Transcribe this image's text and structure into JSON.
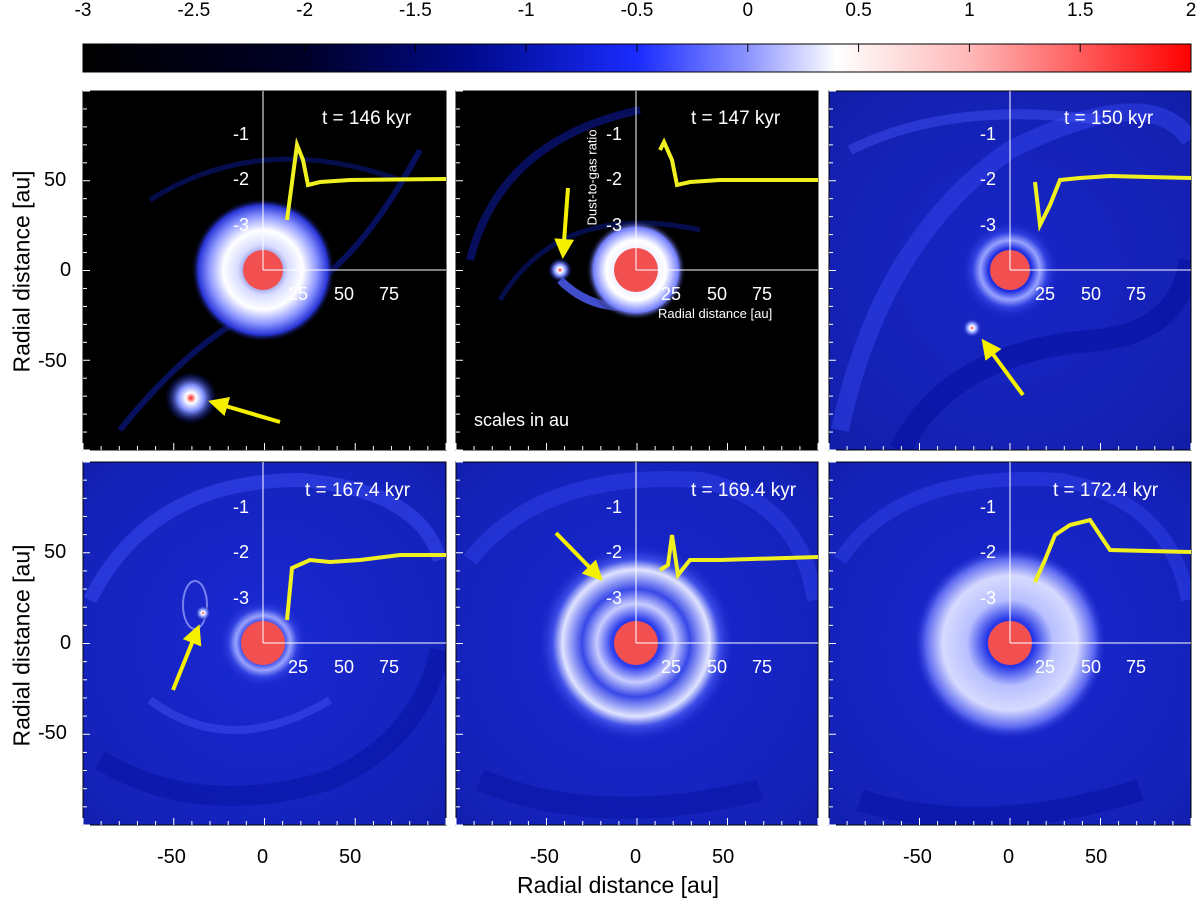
{
  "colorbar": {
    "ticks": [
      "-3",
      "-2.5",
      "-2",
      "-1.5",
      "-1",
      "-0.5",
      "0",
      "0.5",
      "1",
      "1.5",
      "2"
    ],
    "min": -3,
    "max": 2
  },
  "axes": {
    "x_title": "Radial distance [au]",
    "y_title": "Radial distance [au]",
    "x_ticks": [
      "-50",
      "0",
      "50"
    ],
    "y_ticks": [
      "50",
      "0",
      "-50"
    ]
  },
  "inset": {
    "y_ticks": [
      "-1",
      "-2",
      "-3"
    ],
    "x_ticks": [
      "25",
      "50",
      "75"
    ],
    "y_title": "Dust-to-gas ratio",
    "x_title": "Radial distance [au]"
  },
  "scale_note": "scales in au",
  "panels": [
    {
      "time": "t = 146 kyr"
    },
    {
      "time": "t = 147 kyr"
    },
    {
      "time": "t = 150 kyr"
    },
    {
      "time": "t = 167.4 kyr"
    },
    {
      "time": "t = 169.4 kyr"
    },
    {
      "time": "t = 172.4 kyr"
    }
  ],
  "colors": {
    "star": "#f25050",
    "arrow": "#f5f000",
    "profile": "#f0f020",
    "bg_dark": "#000000",
    "disk_blue": "#1f2bd6"
  }
}
